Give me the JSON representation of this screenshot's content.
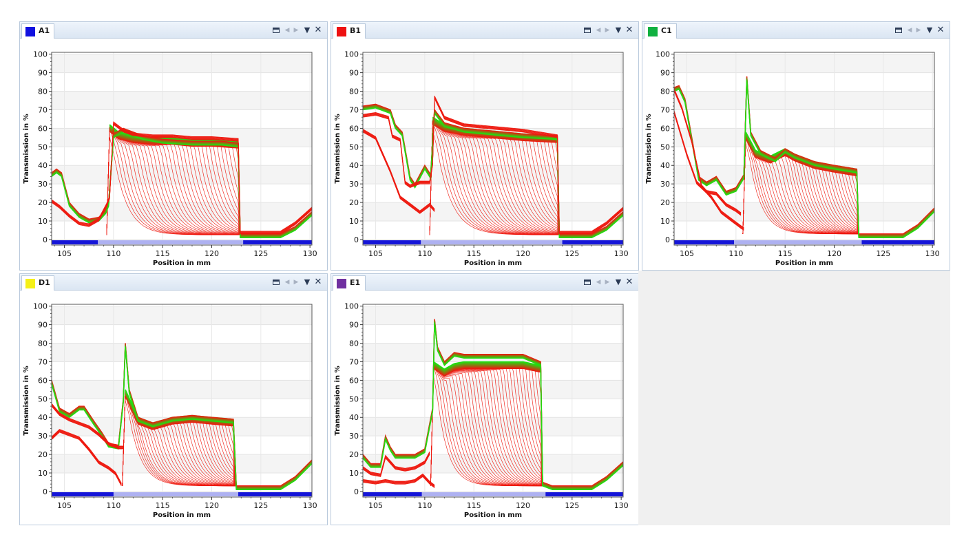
{
  "colors": {
    "trace_low": "#ee1a10",
    "trace_high": "#22dd11",
    "band_dark": "#1515d8",
    "band_light": "#c9cdf6"
  },
  "window_controls": [
    "maximize-icon",
    "prev-icon",
    "next-icon",
    "menu-icon",
    "close-icon"
  ],
  "panels": [
    {
      "label": "A1",
      "color": "#1010e0",
      "chart_data": {
        "type": "line",
        "xlabel": "Position in mm",
        "ylabel": "Transmission in %",
        "xlim": [
          103.7,
          130.2
        ],
        "ylim": [
          -3,
          101
        ],
        "xticks": [
          105,
          110,
          115,
          120,
          125,
          130
        ],
        "yticks": [
          0,
          10,
          20,
          30,
          40,
          50,
          60,
          70,
          80,
          90,
          100
        ],
        "grid": true,
        "series": [
          {
            "x": [
              103.7,
              104.2,
              104.7,
              105.5,
              106.5,
              107.5,
              108.5,
              109.2,
              109.5,
              110,
              111,
              112,
              113,
              115,
              118,
              121,
              122.7,
              122.9,
              123.2,
              125,
              127,
              128.5,
              130.2
            ],
            "y": [
              36,
              38,
              36,
              20,
              14,
              11,
              12,
              16,
              20,
              57,
              60,
              58,
              56,
              54,
              53,
              53,
              52,
              3,
              3,
              3,
              3,
              7,
              15
            ]
          },
          {
            "x": [
              103.7,
              104.5,
              105.5,
              106.5,
              107.5,
              108.5,
              109.3,
              109.6,
              110,
              110.5,
              111,
              112,
              114,
              116,
              118,
              120,
              122.7,
              122.9,
              125,
              127,
              128.5,
              130.2
            ],
            "y": [
              20,
              17,
              12,
              8,
              7,
              10,
              18,
              22,
              62,
              60,
              58,
              56,
              55,
              55,
              54,
              54,
              53,
              3,
              3,
              3,
              8,
              16
            ]
          }
        ],
        "envelope": {
          "x_start": 109.6,
          "x_end": 122.7,
          "top_y": [
            62,
            58,
            56,
            55,
            55,
            54,
            54,
            53
          ],
          "top_x": [
            109.6,
            110.5,
            112,
            114,
            116,
            118,
            120,
            122.7
          ],
          "decay": 2.2,
          "floor": 2.5
        }
      }
    },
    {
      "label": "B1",
      "color": "#ee1111",
      "chart_data": {
        "type": "line",
        "xlabel": "Position in mm",
        "ylabel": "Transmission in %",
        "xlim": [
          103.7,
          130.2
        ],
        "ylim": [
          -3,
          101
        ],
        "xticks": [
          105,
          110,
          115,
          120,
          125,
          130
        ],
        "yticks": [
          0,
          10,
          20,
          30,
          40,
          50,
          60,
          70,
          80,
          90,
          100
        ],
        "grid": true,
        "series": [
          {
            "x": [
              103.7,
              105,
              106.5,
              107,
              107.7,
              108.5,
              109,
              110,
              110.6,
              111,
              112,
              114,
              116,
              118,
              120,
              123.5,
              123.7,
              125,
              127,
              128.5,
              130.2
            ],
            "y": [
              72,
              73,
              70,
              62,
              58,
              34,
              30,
              40,
              35,
              70,
              63,
              60,
              59,
              58,
              57,
              56,
              3,
              3,
              3,
              7,
              15
            ]
          },
          {
            "x": [
              103.7,
              105,
              106.3,
              106.7,
              107.5,
              108,
              108.5,
              109.5,
              110.5,
              110.8,
              111,
              112,
              114,
              116,
              118,
              120,
              123.5,
              123.7,
              125,
              127,
              128.5,
              130.2
            ],
            "y": [
              66,
              67,
              65,
              55,
              53,
              30,
              28,
              30,
              30,
              40,
              76,
              65,
              61,
              60,
              59,
              58,
              55,
              3,
              3,
              3,
              8,
              16
            ]
          },
          {
            "x": [
              103.7,
              105,
              106.5,
              107.5,
              108.5,
              109.5,
              110.5,
              111
            ],
            "y": [
              58,
              54,
              36,
              22,
              18,
              14,
              18,
              15
            ]
          }
        ],
        "envelope": {
          "x_start": 110.8,
          "x_end": 123.5,
          "top_y": [
            66,
            62,
            60,
            59,
            58,
            57,
            56
          ],
          "top_x": [
            110.8,
            112,
            114,
            116,
            118,
            120,
            123.5
          ],
          "decay": 2.4,
          "floor": 2.5
        }
      }
    },
    {
      "label": "C1",
      "color": "#10b040",
      "chart_data": {
        "type": "line",
        "xlabel": "Position in mm",
        "ylabel": "Transmission in %",
        "xlim": [
          103.7,
          130.2
        ],
        "ylim": [
          -3,
          101
        ],
        "xticks": [
          105,
          110,
          115,
          120,
          125,
          130
        ],
        "yticks": [
          0,
          10,
          20,
          30,
          40,
          50,
          60,
          70,
          80,
          90,
          100
        ],
        "grid": true,
        "series": [
          {
            "x": [
              103.7,
              104.2,
              104.8,
              105.5,
              106.2,
              107,
              108,
              109,
              110,
              110.8,
              111.1,
              111.5,
              112.5,
              114,
              115,
              116,
              118,
              120,
              122.3,
              122.5,
              125,
              127,
              128.5,
              130.2
            ],
            "y": [
              82,
              83,
              76,
              55,
              34,
              31,
              34,
              26,
              28,
              35,
              88,
              58,
              48,
              44,
              49,
              46,
              42,
              40,
              38,
              3,
              3,
              3,
              8,
              17
            ]
          },
          {
            "x": [
              103.7,
              104.5,
              105.5,
              106.5,
              107.5,
              108.5,
              109.5,
              110,
              110.5,
              110.8
            ],
            "y": [
              80,
              70,
              52,
              28,
              22,
              14,
              10,
              8,
              6,
              5
            ]
          },
          {
            "x": [
              103.7,
              105,
              106,
              107,
              108,
              109,
              110,
              110.5
            ],
            "y": [
              68,
              45,
              30,
              25,
              24,
              18,
              15,
              13
            ]
          }
        ],
        "envelope": {
          "x_start": 111.0,
          "x_end": 122.3,
          "top_y": [
            58,
            48,
            45,
            49,
            46,
            42,
            40,
            38
          ],
          "top_x": [
            111.0,
            112,
            113.5,
            115,
            116,
            118,
            120,
            122.3
          ],
          "decay": 2.0,
          "floor": 3.0
        }
      }
    },
    {
      "label": "D1",
      "color": "#f5f018",
      "chart_data": {
        "type": "line",
        "xlabel": "Position in mm",
        "ylabel": "Transmission in %",
        "xlim": [
          103.7,
          130.2
        ],
        "ylim": [
          -3,
          101
        ],
        "xticks": [
          105,
          110,
          115,
          120,
          125,
          130
        ],
        "yticks": [
          0,
          10,
          20,
          30,
          40,
          50,
          60,
          70,
          80,
          90,
          100
        ],
        "grid": true,
        "series": [
          {
            "x": [
              103.7,
              104.5,
              105.5,
              106.5,
              107,
              108,
              108.8,
              109.5,
              110.5,
              111,
              111.2,
              111.6,
              112.5,
              114,
              116,
              118,
              120,
              122.2,
              122.5,
              125,
              127,
              128.5,
              130.2
            ],
            "y": [
              60,
              45,
              42,
              46,
              46,
              38,
              32,
              26,
              25,
              50,
              80,
              55,
              40,
              37,
              40,
              41,
              40,
              39,
              3,
              3,
              3,
              8,
              17
            ]
          },
          {
            "x": [
              103.7,
              104.5,
              105.5,
              106.5,
              107.5,
              108.5,
              109.5,
              110.5,
              111
            ],
            "y": [
              46,
              41,
              38,
              36,
              34,
              30,
              25,
              23,
              23
            ]
          },
          {
            "x": [
              103.7,
              104.5,
              105.5,
              106.5,
              107.5,
              108.5,
              109.5,
              110.2,
              110.8
            ],
            "y": [
              28,
              32,
              30,
              28,
              22,
              15,
              12,
              9,
              3
            ]
          }
        ],
        "envelope": {
          "x_start": 111.2,
          "x_end": 122.2,
          "top_y": [
            55,
            40,
            37,
            40,
            41,
            40,
            39
          ],
          "top_x": [
            111.2,
            112.5,
            114,
            116,
            118,
            120,
            122.2
          ],
          "decay": 2.0,
          "floor": 3.0
        }
      }
    },
    {
      "label": "E1",
      "color": "#7030a0",
      "chart_data": {
        "type": "line",
        "xlabel": "Position in mm",
        "ylabel": "Transmission in %",
        "xlim": [
          103.7,
          130.2
        ],
        "ylim": [
          -3,
          101
        ],
        "xticks": [
          105,
          110,
          115,
          120,
          125,
          130
        ],
        "yticks": [
          0,
          10,
          20,
          30,
          40,
          50,
          60,
          70,
          80,
          90,
          100
        ],
        "grid": true,
        "series": [
          {
            "x": [
              103.7,
              104.5,
              105.5,
              106,
              106.5,
              107,
              108,
              109,
              110,
              110.8,
              111,
              111.3,
              112,
              113,
              114,
              116,
              118,
              120,
              121.8,
              122,
              123,
              125,
              127,
              128.5,
              130.2
            ],
            "y": [
              20,
              15,
              15,
              30,
              24,
              20,
              20,
              20,
              23,
              45,
              93,
              78,
              70,
              75,
              74,
              74,
              74,
              74,
              70,
              5,
              3,
              3,
              3,
              8,
              16
            ]
          },
          {
            "x": [
              103.7,
              104.5,
              105.5,
              106,
              107,
              108,
              109,
              110,
              110.5
            ],
            "y": [
              12,
              9,
              8,
              18,
              12,
              11,
              12,
              15,
              20
            ]
          },
          {
            "x": [
              103.7,
              105,
              106,
              107,
              108,
              109,
              109.8,
              110.5,
              111
            ],
            "y": [
              5,
              4,
              5,
              4,
              4,
              5,
              8,
              4,
              2
            ]
          }
        ],
        "envelope": {
          "x_start": 110.9,
          "x_end": 121.8,
          "top_y": [
            70,
            66,
            69,
            70,
            70,
            70,
            68
          ],
          "top_x": [
            110.9,
            112,
            113,
            114,
            116,
            120,
            121.8
          ],
          "decay": 1.8,
          "floor": 3.0
        }
      }
    }
  ]
}
